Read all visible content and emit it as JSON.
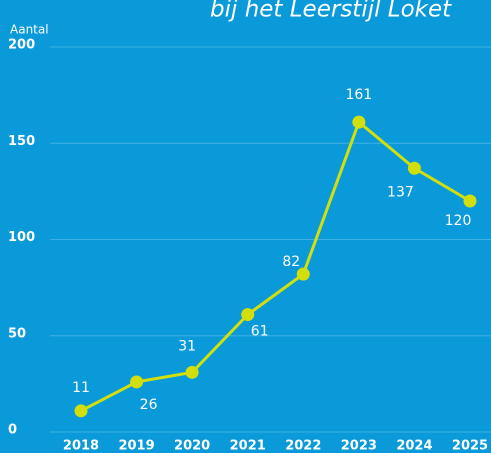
{
  "chart_data": {
    "type": "line",
    "title": "bij het Leerstijl Loket",
    "y_label": "Aantal",
    "categories": [
      "2018",
      "2019",
      "2020",
      "2021",
      "2022",
      "2023",
      "2024",
      "2025"
    ],
    "values": [
      11,
      26,
      31,
      61,
      82,
      161,
      137,
      120
    ],
    "color": "#d2df0c",
    "ylim": [
      0,
      200
    ],
    "yticks": [
      0,
      50,
      100,
      150,
      200
    ],
    "grid": true
  }
}
